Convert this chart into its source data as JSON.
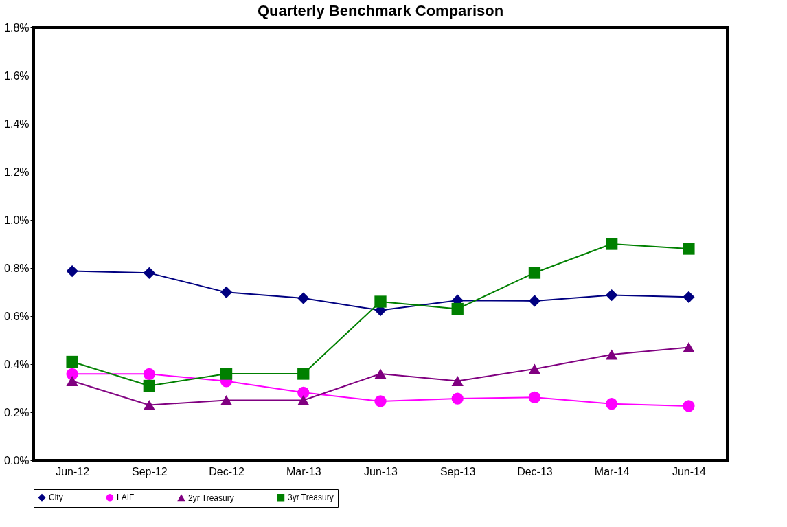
{
  "chart_data": {
    "type": "line",
    "title": "Quarterly Benchmark Comparison",
    "categories": [
      "Jun-12",
      "Sep-12",
      "Dec-12",
      "Mar-13",
      "Jun-13",
      "Sep-13",
      "Dec-13",
      "Mar-14",
      "Jun-14"
    ],
    "series": [
      {
        "name": "City",
        "color": "#000080",
        "marker": "diamond",
        "values": [
          0.787,
          0.779,
          0.699,
          0.674,
          0.624,
          0.665,
          0.663,
          0.687,
          0.679
        ]
      },
      {
        "name": "LAIF",
        "color": "#ff00ff",
        "marker": "circle",
        "values": [
          0.359,
          0.359,
          0.329,
          0.282,
          0.246,
          0.257,
          0.262,
          0.235,
          0.226
        ]
      },
      {
        "name": "2yr Treasury",
        "color": "#800080",
        "marker": "triangle",
        "values": [
          0.33,
          0.23,
          0.25,
          0.25,
          0.36,
          0.33,
          0.38,
          0.44,
          0.47
        ]
      },
      {
        "name": "3yr Treasury",
        "color": "#008000",
        "marker": "square",
        "values": [
          0.41,
          0.31,
          0.36,
          0.36,
          0.66,
          0.63,
          0.78,
          0.9,
          0.88
        ]
      }
    ],
    "ylim": [
      0,
      1.8
    ],
    "yticks": [
      {
        "value": 0,
        "label": "0.0%"
      },
      {
        "value": 0.2,
        "label": "0.2%"
      },
      {
        "value": 0.4,
        "label": "0.4%"
      },
      {
        "value": 0.6,
        "label": "0.6%"
      },
      {
        "value": 0.8,
        "label": "0.8%"
      },
      {
        "value": 1.0,
        "label": "1.0%"
      },
      {
        "value": 1.2,
        "label": "1.2%"
      },
      {
        "value": 1.4,
        "label": "1.4%"
      },
      {
        "value": 1.6,
        "label": "1.6%"
      },
      {
        "value": 1.8,
        "label": "1.8%"
      }
    ],
    "grid": false,
    "legend": "bottom",
    "line_style": "solid"
  }
}
